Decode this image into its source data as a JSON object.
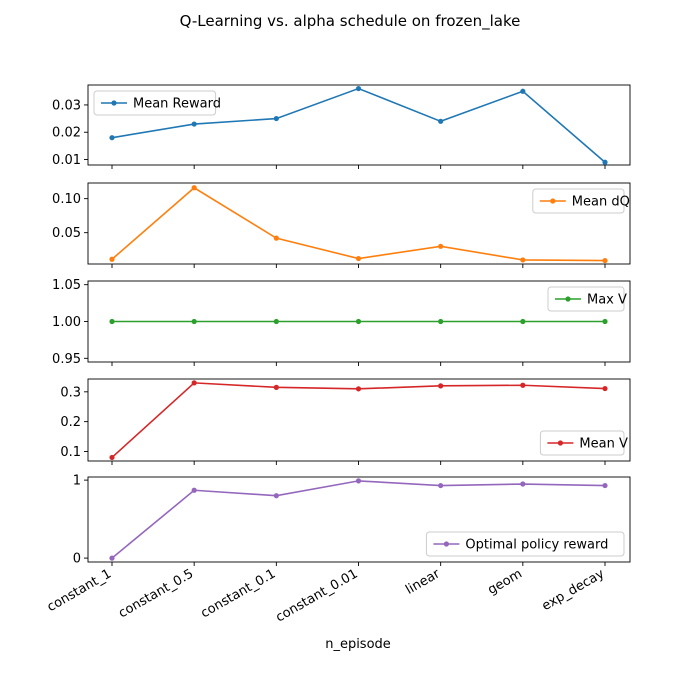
{
  "title": "Q-Learning vs. alpha schedule on frozen_lake",
  "chart_data": {
    "type": "line",
    "title": "Q-Learning vs. alpha schedule on frozen_lake",
    "xlabel": "n_episode",
    "categories": [
      "constant_1",
      "constant_0.5",
      "constant_0.1",
      "constant_0.01",
      "linear",
      "geom",
      "exp_decay"
    ],
    "grid": false,
    "panels": [
      {
        "name": "Mean Reward",
        "color": "#1f77b4",
        "values": [
          0.018,
          0.023,
          0.025,
          0.036,
          0.024,
          0.035,
          0.009
        ],
        "ylim": [
          0.008,
          0.0373
        ],
        "yticks": [
          0.01,
          0.02,
          0.03
        ],
        "ytick_labels": [
          "0.01",
          "0.02",
          "0.03"
        ],
        "legend": "upper left"
      },
      {
        "name": "Mean dQ",
        "color": "#ff7f0e",
        "values": [
          0.011,
          0.116,
          0.042,
          0.012,
          0.03,
          0.01,
          0.009
        ],
        "ylim": [
          0.004,
          0.123
        ],
        "yticks": [
          0.05,
          0.1
        ],
        "ytick_labels": [
          "0.05",
          "0.10"
        ],
        "legend": "upper right"
      },
      {
        "name": "Max V",
        "color": "#2ca02c",
        "values": [
          1.0,
          1.0,
          1.0,
          1.0,
          1.0,
          1.0,
          1.0
        ],
        "ylim": [
          0.945,
          1.055
        ],
        "yticks": [
          0.95,
          1.0,
          1.05
        ],
        "ytick_labels": [
          "0.95",
          "1.00",
          "1.05"
        ],
        "legend": "upper right"
      },
      {
        "name": "Mean V",
        "color": "#d62728",
        "values": [
          0.08,
          0.33,
          0.315,
          0.31,
          0.32,
          0.322,
          0.311
        ],
        "ylim": [
          0.068,
          0.343
        ],
        "yticks": [
          0.1,
          0.2,
          0.3
        ],
        "ytick_labels": [
          "0.1",
          "0.2",
          "0.3"
        ],
        "legend": "lower right"
      },
      {
        "name": "Optimal policy reward",
        "color": "#9467bd",
        "values": [
          0.0,
          0.87,
          0.8,
          0.99,
          0.93,
          0.95,
          0.93
        ],
        "ylim": [
          -0.05,
          1.04
        ],
        "yticks": [
          0,
          1
        ],
        "ytick_labels": [
          "0",
          "1"
        ],
        "legend": "lower right"
      }
    ]
  }
}
